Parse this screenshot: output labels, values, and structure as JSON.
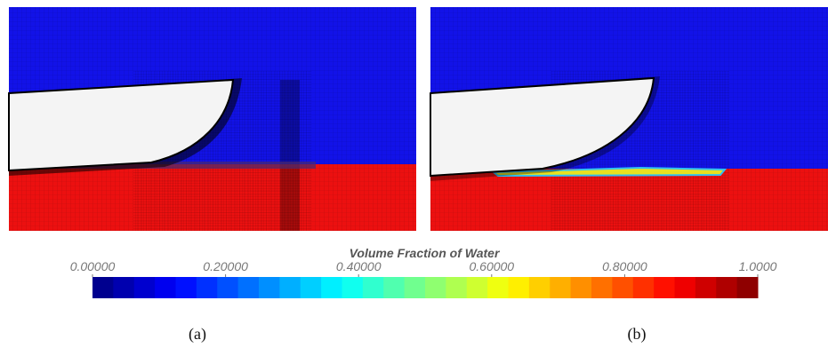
{
  "panels": [
    {
      "label": "(a)"
    },
    {
      "label": "(b)"
    }
  ],
  "colorbar": {
    "title": "Volume Fraction of Water",
    "range": [
      0,
      1
    ],
    "ticks": [
      {
        "value": 0,
        "label": "0.00000"
      },
      {
        "value": 0.2,
        "label": "0.20000"
      },
      {
        "value": 0.4,
        "label": "0.40000"
      },
      {
        "value": 0.6,
        "label": "0.60000"
      },
      {
        "value": 0.8,
        "label": "0.80000"
      },
      {
        "value": 1,
        "label": "1.0000"
      }
    ]
  }
}
